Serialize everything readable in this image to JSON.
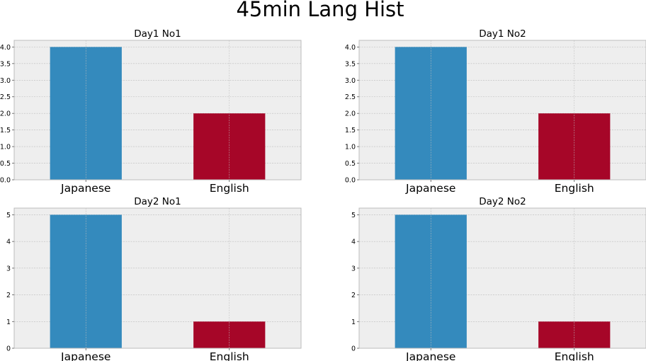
{
  "figure": {
    "title": "45min Lang Hist"
  },
  "colors": {
    "axes_background": "#eeeeee",
    "grid": "#bcbcbc",
    "spine": "#bcbcbc",
    "japanese_bar": "#348abd",
    "english_bar": "#a60628"
  },
  "chart_data": [
    {
      "type": "bar",
      "title": "Day1 No1",
      "categories": [
        "Japanese",
        "English"
      ],
      "values": [
        4,
        2
      ],
      "ylim": [
        0,
        4.2
      ],
      "yticks": [
        0.0,
        0.5,
        1.0,
        1.5,
        2.0,
        2.5,
        3.0,
        3.5,
        4.0
      ],
      "ytick_labels": [
        "0.0",
        "0.5",
        "1.0",
        "1.5",
        "2.0",
        "2.5",
        "3.0",
        "3.5",
        "4.0"
      ],
      "xlabel": "",
      "ylabel": "",
      "grid": true,
      "legend": "none"
    },
    {
      "type": "bar",
      "title": "Day1 No2",
      "categories": [
        "Japanese",
        "English"
      ],
      "values": [
        4,
        2
      ],
      "ylim": [
        0,
        4.2
      ],
      "yticks": [
        0.0,
        0.5,
        1.0,
        1.5,
        2.0,
        2.5,
        3.0,
        3.5,
        4.0
      ],
      "ytick_labels": [
        "0.0",
        "0.5",
        "1.0",
        "1.5",
        "2.0",
        "2.5",
        "3.0",
        "3.5",
        "4.0"
      ],
      "xlabel": "",
      "ylabel": "",
      "grid": true,
      "legend": "none"
    },
    {
      "type": "bar",
      "title": "Day2 No1",
      "categories": [
        "Japanese",
        "English"
      ],
      "values": [
        5,
        1
      ],
      "ylim": [
        0,
        5.25
      ],
      "yticks": [
        0,
        1,
        2,
        3,
        4,
        5
      ],
      "ytick_labels": [
        "0",
        "1",
        "2",
        "3",
        "4",
        "5"
      ],
      "xlabel": "",
      "ylabel": "",
      "grid": true,
      "legend": "none"
    },
    {
      "type": "bar",
      "title": "Day2 No2",
      "categories": [
        "Japanese",
        "English"
      ],
      "values": [
        5,
        1
      ],
      "ylim": [
        0,
        5.25
      ],
      "yticks": [
        0,
        1,
        2,
        3,
        4,
        5
      ],
      "ytick_labels": [
        "0",
        "1",
        "2",
        "3",
        "4",
        "5"
      ],
      "xlabel": "",
      "ylabel": "",
      "grid": true,
      "legend": "none"
    }
  ]
}
